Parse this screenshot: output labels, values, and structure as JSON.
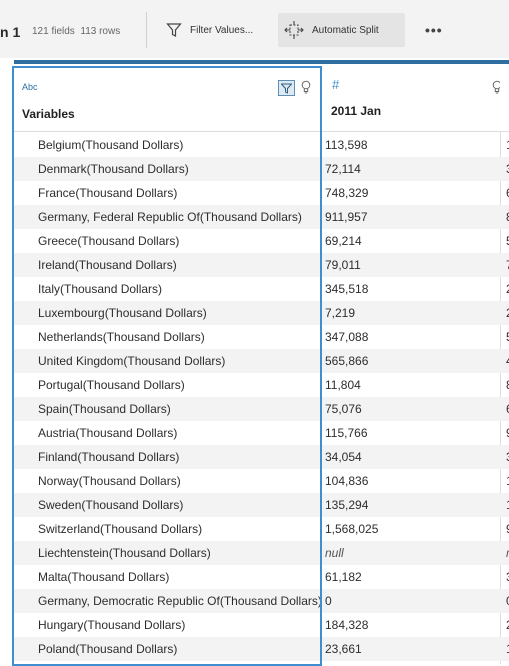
{
  "toolbar": {
    "title": "n 1",
    "fields": "121 fields",
    "rows": "113 rows",
    "filter_label": "Filter Values...",
    "split_label": "Automatic Split",
    "more_label": "•••"
  },
  "columns": {
    "variables": {
      "type": "Abc",
      "name": "Variables"
    },
    "jan2011": {
      "type": "#",
      "name": "2011 Jan"
    }
  },
  "rows": [
    {
      "variable": "Belgium(Thousand Dollars)",
      "jan": "113,598",
      "next": "1"
    },
    {
      "variable": "Denmark(Thousand Dollars)",
      "jan": "72,114",
      "next": "3"
    },
    {
      "variable": "France(Thousand Dollars)",
      "jan": "748,329",
      "next": "6"
    },
    {
      "variable": "Germany, Federal Republic Of(Thousand Dollars)",
      "jan": "911,957",
      "next": "8"
    },
    {
      "variable": "Greece(Thousand Dollars)",
      "jan": "69,214",
      "next": "5"
    },
    {
      "variable": "Ireland(Thousand Dollars)",
      "jan": "79,011",
      "next": "7"
    },
    {
      "variable": "Italy(Thousand Dollars)",
      "jan": "345,518",
      "next": "2"
    },
    {
      "variable": "Luxembourg(Thousand Dollars)",
      "jan": "7,219",
      "next": "2"
    },
    {
      "variable": "Netherlands(Thousand Dollars)",
      "jan": "347,088",
      "next": "5"
    },
    {
      "variable": "United Kingdom(Thousand Dollars)",
      "jan": "565,866",
      "next": "4"
    },
    {
      "variable": "Portugal(Thousand Dollars)",
      "jan": "11,804",
      "next": "8"
    },
    {
      "variable": "Spain(Thousand Dollars)",
      "jan": "75,076",
      "next": "6"
    },
    {
      "variable": "Austria(Thousand Dollars)",
      "jan": "115,766",
      "next": "9"
    },
    {
      "variable": "Finland(Thousand Dollars)",
      "jan": "34,054",
      "next": "3"
    },
    {
      "variable": "Norway(Thousand Dollars)",
      "jan": "104,836",
      "next": "1"
    },
    {
      "variable": "Sweden(Thousand Dollars)",
      "jan": "135,294",
      "next": "1"
    },
    {
      "variable": "Switzerland(Thousand Dollars)",
      "jan": "1,568,025",
      "next": "9"
    },
    {
      "variable": "Liechtenstein(Thousand Dollars)",
      "jan": "null",
      "next": "n"
    },
    {
      "variable": "Malta(Thousand Dollars)",
      "jan": "61,182",
      "next": "3"
    },
    {
      "variable": "Germany, Democratic Republic Of(Thousand Dollars)",
      "jan": "0",
      "next": "0"
    },
    {
      "variable": "Hungary(Thousand Dollars)",
      "jan": "184,328",
      "next": "2"
    },
    {
      "variable": "Poland(Thousand Dollars)",
      "jan": "23,661",
      "next": "1"
    }
  ]
}
